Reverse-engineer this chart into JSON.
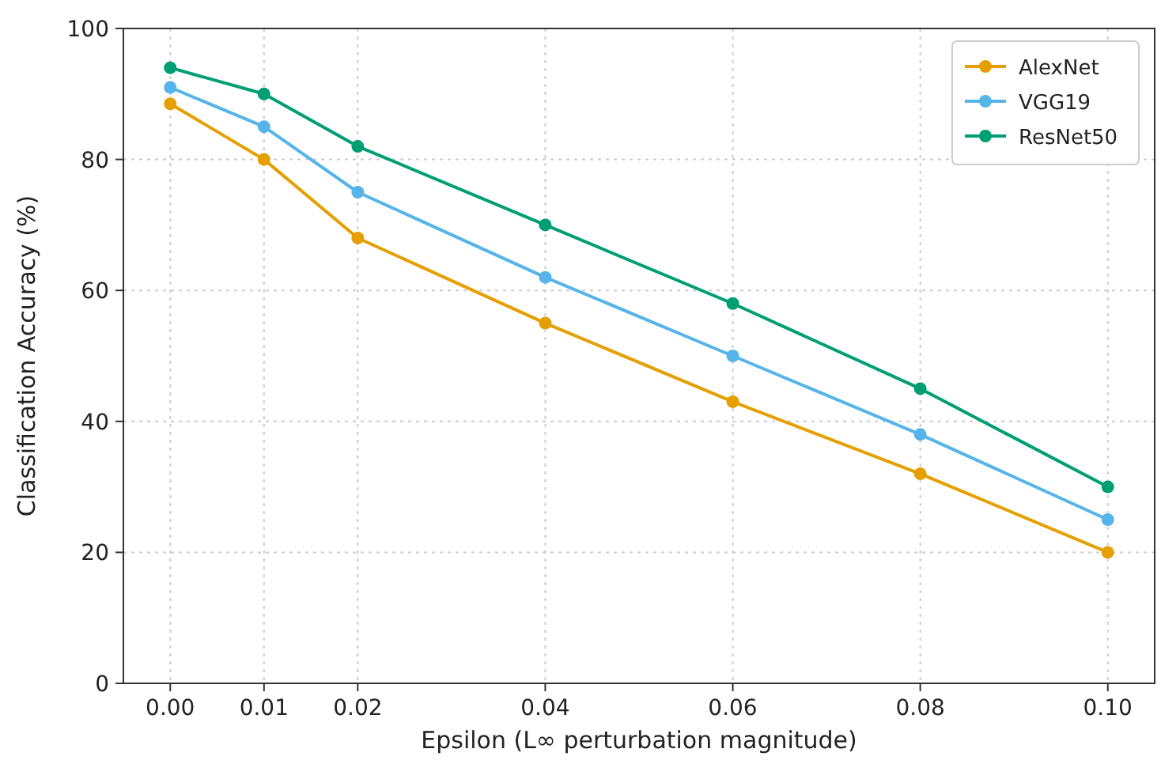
{
  "chart_data": {
    "type": "line",
    "xlabel": "Epsilon (L∞ perturbation magnitude)",
    "ylabel": "Classification Accuracy (%)",
    "x": [
      0,
      0.01,
      0.02,
      0.04,
      0.06,
      0.08,
      0.1
    ],
    "series": [
      {
        "name": "AlexNet",
        "color": "#e69f00",
        "values": [
          88.5,
          80,
          68,
          55,
          43,
          32,
          20
        ]
      },
      {
        "name": "VGG19",
        "color": "#56b4e9",
        "values": [
          91,
          85,
          75,
          62,
          50,
          38,
          25
        ]
      },
      {
        "name": "ResNet50",
        "color": "#009e73",
        "values": [
          94,
          90,
          82,
          70,
          58,
          45,
          30
        ]
      }
    ],
    "xlim": [
      -0.005,
      0.105
    ],
    "xticks": [
      {
        "value": 0,
        "label": "0.00"
      },
      {
        "value": 0.01,
        "label": "0.01"
      },
      {
        "value": 0.02,
        "label": "0.02"
      },
      {
        "value": 0.04,
        "label": "0.04"
      },
      {
        "value": 0.06,
        "label": "0.06"
      },
      {
        "value": 0.08,
        "label": "0.08"
      },
      {
        "value": 0.1,
        "label": "0.10"
      }
    ],
    "ylim": [
      0,
      100
    ],
    "yticks": [
      0,
      20,
      40,
      60,
      80,
      100
    ],
    "grid": true,
    "legend": "top right",
    "marker": "circle",
    "line_style": "solid"
  }
}
